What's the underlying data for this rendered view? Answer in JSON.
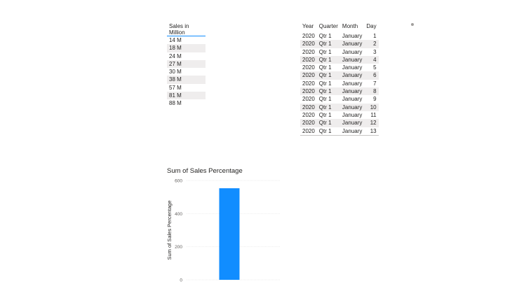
{
  "sales_table": {
    "header": "Sales in Million",
    "rows": [
      "14 M",
      "18 M",
      "24 M",
      "27 M",
      "30 M",
      "38 M",
      "57 M",
      "81 M",
      "88 M"
    ]
  },
  "date_table": {
    "headers": [
      "Year",
      "Quarter",
      "Month",
      "Day"
    ],
    "rows": [
      [
        "2020",
        "Qtr 1",
        "January",
        "1"
      ],
      [
        "2020",
        "Qtr 1",
        "January",
        "2"
      ],
      [
        "2020",
        "Qtr 1",
        "January",
        "3"
      ],
      [
        "2020",
        "Qtr 1",
        "January",
        "4"
      ],
      [
        "2020",
        "Qtr 1",
        "January",
        "5"
      ],
      [
        "2020",
        "Qtr 1",
        "January",
        "6"
      ],
      [
        "2020",
        "Qtr 1",
        "January",
        "7"
      ],
      [
        "2020",
        "Qtr 1",
        "January",
        "8"
      ],
      [
        "2020",
        "Qtr 1",
        "January",
        "9"
      ],
      [
        "2020",
        "Qtr 1",
        "January",
        "10"
      ],
      [
        "2020",
        "Qtr 1",
        "January",
        "11"
      ],
      [
        "2020",
        "Qtr 1",
        "January",
        "12"
      ],
      [
        "2020",
        "Qtr 1",
        "January",
        "13"
      ]
    ]
  },
  "chart_data": {
    "type": "bar",
    "title": "Sum of Sales Percentage",
    "ylabel": "Sum of Sales Percentage",
    "xlabel": "",
    "categories": [
      ""
    ],
    "values": [
      553
    ],
    "ylim": [
      0,
      600
    ],
    "yticks": [
      0,
      200,
      400,
      600
    ],
    "grid": true,
    "bar_color": "#118dff"
  }
}
